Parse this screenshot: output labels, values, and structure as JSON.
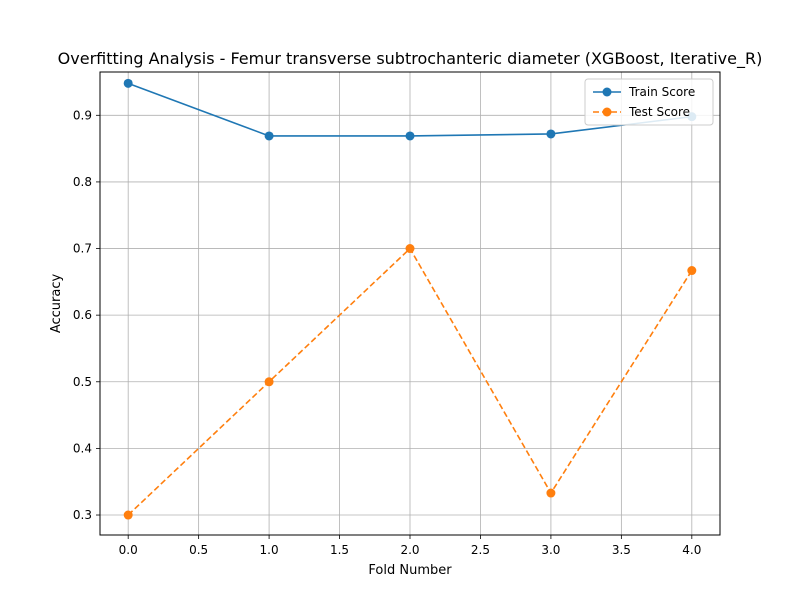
{
  "chart_data": {
    "type": "line",
    "title": "Overfitting Analysis - Femur transverse subtrochanteric diameter (XGBoost, Iterative_R)",
    "xlabel": "Fold Number",
    "ylabel": "Accuracy",
    "xlim": [
      -0.2,
      4.2
    ],
    "ylim": [
      0.27,
      0.965
    ],
    "x_ticks": [
      0.0,
      0.5,
      1.0,
      1.5,
      2.0,
      2.5,
      3.0,
      3.5,
      4.0
    ],
    "x_tick_labels": [
      "0.0",
      "0.5",
      "1.0",
      "1.5",
      "2.0",
      "2.5",
      "3.0",
      "3.5",
      "4.0"
    ],
    "y_ticks": [
      0.3,
      0.4,
      0.5,
      0.6,
      0.7,
      0.8,
      0.9
    ],
    "y_tick_labels": [
      "0.3",
      "0.4",
      "0.5",
      "0.6",
      "0.7",
      "0.8",
      "0.9"
    ],
    "grid": true,
    "legend_position": "top-right",
    "x": [
      0,
      1,
      2,
      3,
      4
    ],
    "series": [
      {
        "name": "Train Score",
        "values": [
          0.948,
          0.869,
          0.869,
          0.872,
          0.898
        ],
        "color": "#1f77b4",
        "style": "solid"
      },
      {
        "name": "Test Score",
        "values": [
          0.3,
          0.5,
          0.7,
          0.333,
          0.667
        ],
        "color": "#ff7f0e",
        "style": "dashed"
      }
    ]
  }
}
